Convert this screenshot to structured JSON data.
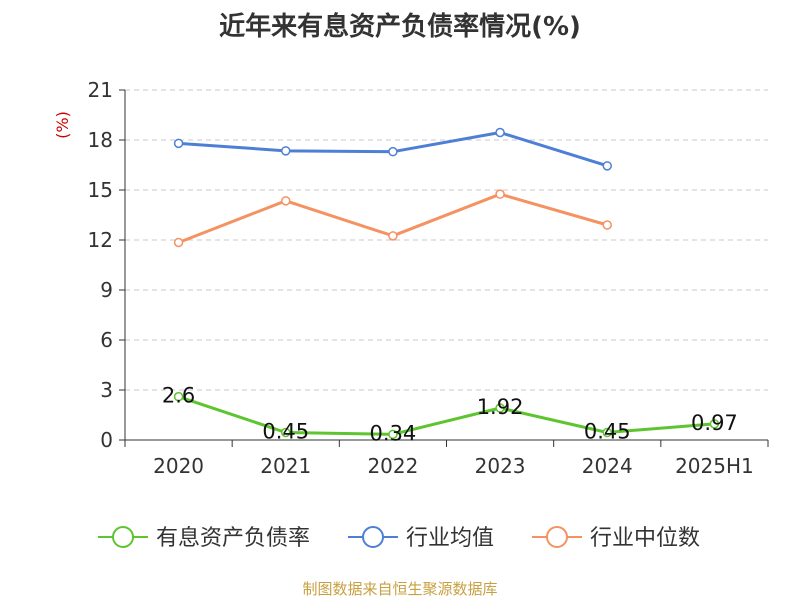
{
  "chart_data": {
    "type": "line",
    "title": "近年来有息资产负债率情况(%)",
    "ylabel": "(%)",
    "categories": [
      "2020",
      "2021",
      "2022",
      "2023",
      "2024",
      "2025H1"
    ],
    "ylim": [
      0,
      21
    ],
    "yticks": [
      0,
      3,
      6,
      9,
      12,
      15,
      18,
      21
    ],
    "grid": true,
    "legend_position": "bottom",
    "series": [
      {
        "name": "有息资产负债率",
        "color": "#5ec42f",
        "values": [
          2.6,
          0.45,
          0.34,
          1.92,
          0.45,
          0.97
        ],
        "labels": [
          "2.6",
          "0.45",
          "0.34",
          "1.92",
          "0.45",
          "0.97"
        ]
      },
      {
        "name": "行业均值",
        "color": "#4e7fd6",
        "values": [
          17.8,
          17.35,
          17.3,
          18.45,
          16.45,
          null
        ]
      },
      {
        "name": "行业中位数",
        "color": "#f59262",
        "values": [
          11.85,
          14.35,
          12.25,
          14.75,
          12.9,
          null
        ]
      }
    ]
  },
  "source": "制图数据来自恒生聚源数据库"
}
